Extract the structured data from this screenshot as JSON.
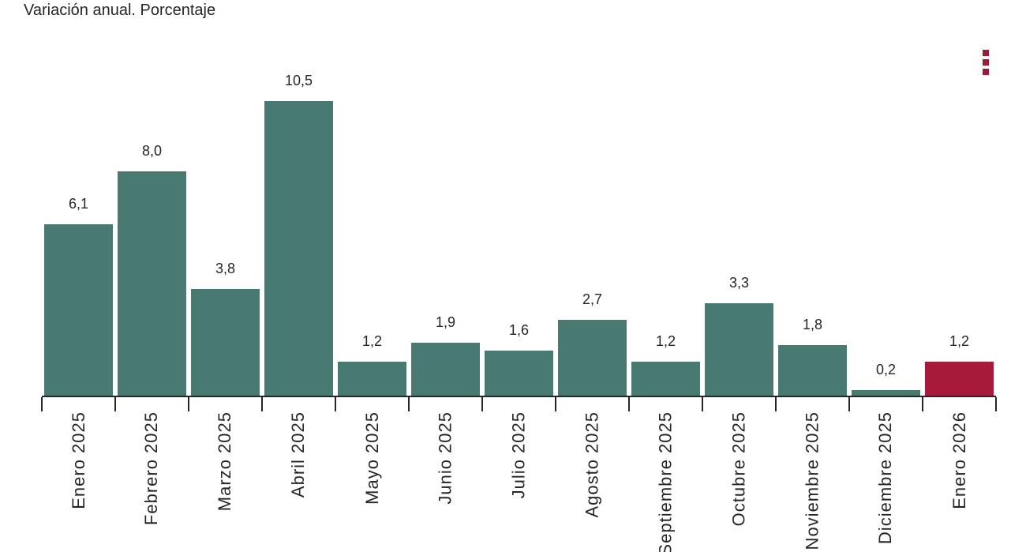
{
  "header": {
    "title": "Variación anual. Porcentaje"
  },
  "toolbar": {
    "context_menu_icon": "kebab-vertical-dots",
    "context_menu_color": "#9E1B36"
  },
  "chart_data": {
    "type": "bar",
    "title": "Variación anual. Porcentaje",
    "categories": [
      "Enero 2025",
      "Febrero 2025",
      "Marzo 2025",
      "Abril 2025",
      "Mayo 2025",
      "Junio 2025",
      "Julio 2025",
      "Agosto 2025",
      "Septiembre 2025",
      "Octubre 2025",
      "Noviembre 2025",
      "Diciembre 2025",
      "Enero 2026"
    ],
    "values": [
      6.1,
      8.0,
      3.8,
      10.5,
      1.2,
      1.9,
      1.6,
      2.7,
      1.2,
      3.3,
      1.8,
      0.2,
      1.2
    ],
    "value_labels": [
      "6,1",
      "8,0",
      "3,8",
      "10,5",
      "1,2",
      "1,9",
      "1,6",
      "2,7",
      "1,2",
      "3,3",
      "1,8",
      "0,2",
      "1,2"
    ],
    "xlabel": "",
    "ylabel": "",
    "ylim": [
      0,
      11.5
    ],
    "grid": false,
    "legend": false,
    "x_labels_rotated": true,
    "decimal_separator": ",",
    "bar_color": "#487A72",
    "highlight_color": "#A81A39",
    "highlight_index": 12,
    "axis_color": "#262626"
  }
}
